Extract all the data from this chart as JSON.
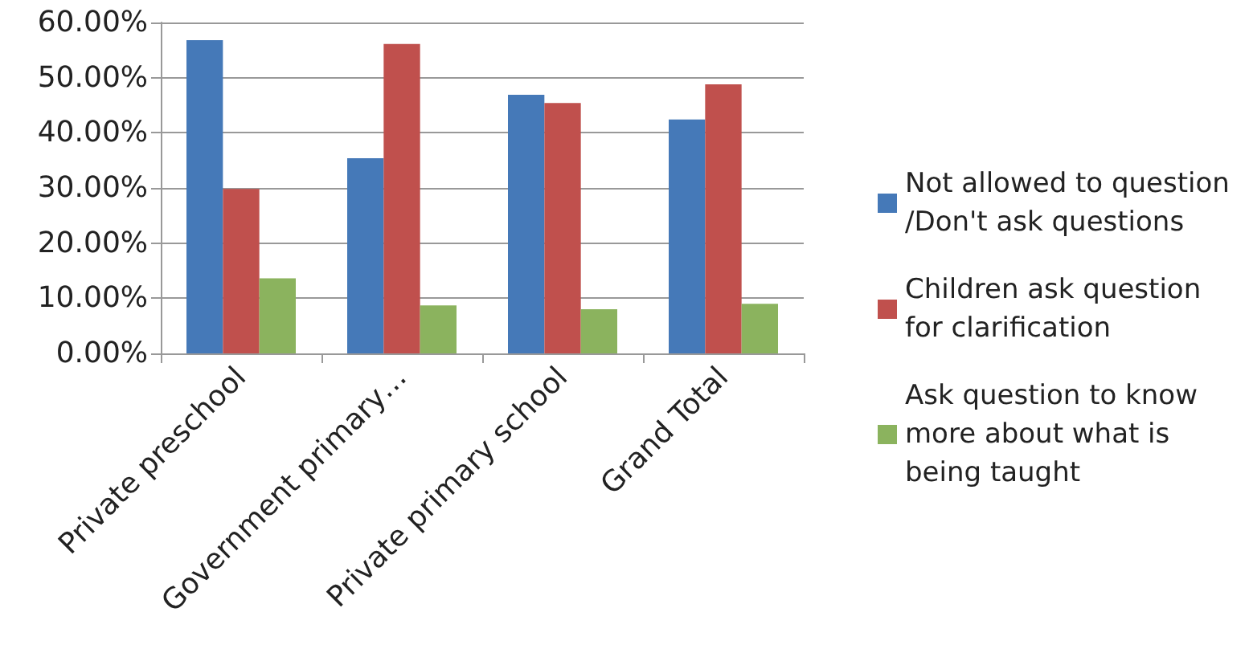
{
  "chart_data": {
    "type": "bar",
    "categories": [
      "Private preschool",
      "Government primary…",
      "Private primary school",
      "Grand Total"
    ],
    "series": [
      {
        "name": "Not allowed to question/Don't ask questions",
        "color": "#4579b8",
        "values": [
          56.8,
          35.4,
          46.9,
          42.4
        ]
      },
      {
        "name": "Children ask question for clarification",
        "color": "#c0504d",
        "values": [
          29.8,
          56.1,
          45.4,
          48.8
        ]
      },
      {
        "name": "Ask question to know more about what is being taught",
        "color": "#8bb35e",
        "values": [
          13.6,
          8.7,
          8.0,
          9.0
        ]
      }
    ],
    "ylim": [
      0,
      60
    ],
    "yticks": [
      {
        "value": 0,
        "label": "0.00%"
      },
      {
        "value": 10,
        "label": "10.00%"
      },
      {
        "value": 20,
        "label": "20.00%"
      },
      {
        "value": 30,
        "label": "30.00%"
      },
      {
        "value": 40,
        "label": "40.00%"
      },
      {
        "value": 50,
        "label": "50.00%"
      },
      {
        "value": 60,
        "label": "60.00%"
      }
    ],
    "grid": "y",
    "legend": "right"
  }
}
